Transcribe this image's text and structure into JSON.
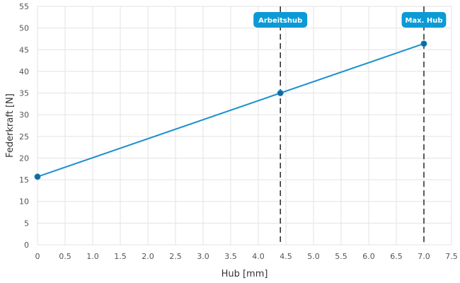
{
  "chart_data": {
    "type": "line",
    "xlabel": "Hub [mm]",
    "ylabel": "Federkraft [N]",
    "xlim": [
      0,
      7.5
    ],
    "ylim": [
      0,
      55
    ],
    "x_ticks": [
      0,
      0.5,
      1,
      1.5,
      2,
      2.5,
      3,
      3.5,
      4,
      4.5,
      5,
      5.5,
      6,
      6.5,
      7,
      7.5
    ],
    "x_tick_labels": [
      "0",
      "0.5",
      "1.0",
      "1.5",
      "2.0",
      "2.5",
      "3.0",
      "3.5",
      "4.0",
      "4.5",
      "5.0",
      "5.5",
      "6.0",
      "6.5",
      "7.0",
      "7.5"
    ],
    "y_ticks": [
      0,
      5,
      10,
      15,
      20,
      25,
      30,
      35,
      40,
      45,
      50,
      55
    ],
    "y_tick_labels": [
      "0",
      "5",
      "10",
      "15",
      "20",
      "25",
      "30",
      "35",
      "40",
      "45",
      "50",
      "55"
    ],
    "grid": true,
    "series": [
      {
        "color": "#1a8fcf",
        "points": [
          {
            "x": 0,
            "y": 15.7
          },
          {
            "x": 4.4,
            "y": 35.0
          },
          {
            "x": 7.0,
            "y": 46.4
          }
        ]
      }
    ],
    "markers": [
      {
        "label": "Arbeitshub",
        "x": 4.4
      },
      {
        "label": "Max. Hub",
        "x": 7.0
      }
    ],
    "marker_color": "#0b9ad6"
  }
}
